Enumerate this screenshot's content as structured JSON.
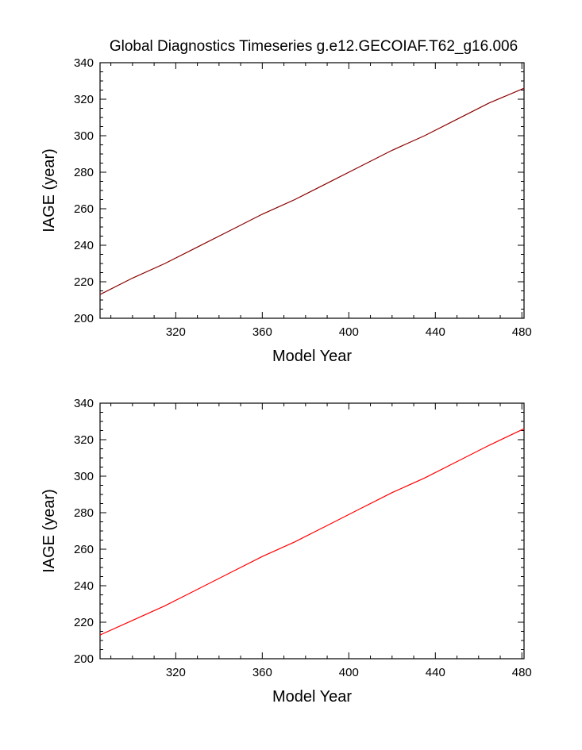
{
  "figure": {
    "title": "Global Diagnostics Timeseries g.e12.GECOIAF.T62_g16.006"
  },
  "chart_data": [
    {
      "type": "line",
      "xlabel": "Model Year",
      "ylabel": "IAGE (year)",
      "xlim": [
        285,
        481
      ],
      "ylim": [
        200,
        340
      ],
      "xticks": [
        320,
        360,
        400,
        440,
        480
      ],
      "yticks": [
        200,
        220,
        240,
        260,
        280,
        300,
        320,
        340
      ],
      "grid": false,
      "series": [
        {
          "color": "#8b0000",
          "x": [
            285,
            300,
            315,
            330,
            345,
            360,
            375,
            390,
            405,
            420,
            435,
            450,
            465,
            481
          ],
          "y": [
            213,
            222,
            230,
            239,
            248,
            257,
            265,
            274,
            283,
            292,
            300,
            309,
            318,
            326
          ]
        }
      ]
    },
    {
      "type": "line",
      "xlabel": "Model Year",
      "ylabel": "IAGE (year)",
      "xlim": [
        285,
        481
      ],
      "ylim": [
        200,
        340
      ],
      "xticks": [
        320,
        360,
        400,
        440,
        480
      ],
      "yticks": [
        200,
        220,
        240,
        260,
        280,
        300,
        320,
        340
      ],
      "grid": false,
      "series": [
        {
          "color": "#ff0000",
          "x": [
            285,
            300,
            315,
            330,
            345,
            360,
            375,
            390,
            405,
            420,
            435,
            450,
            465,
            481
          ],
          "y": [
            213,
            221,
            229,
            238,
            247,
            256,
            264,
            273,
            282,
            291,
            299,
            308,
            317,
            326
          ]
        }
      ]
    }
  ]
}
